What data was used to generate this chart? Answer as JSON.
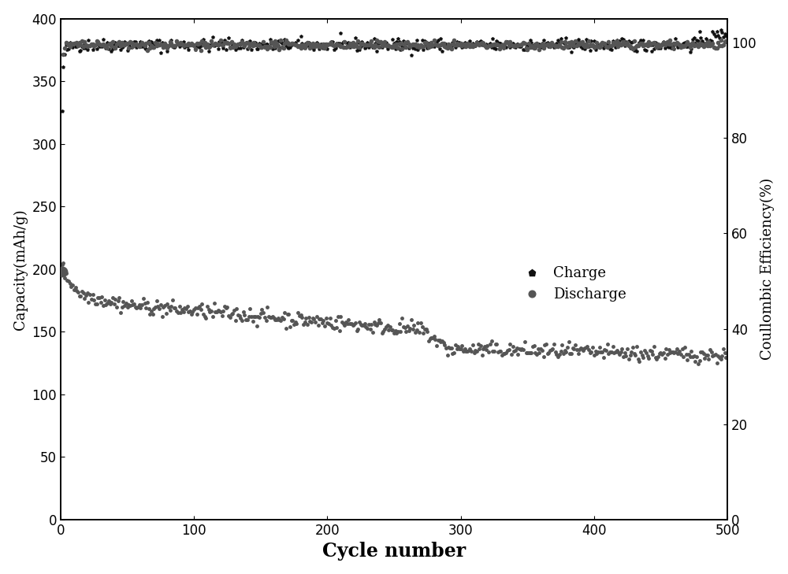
{
  "title": "",
  "xlabel": "Cycle number",
  "ylabel_left": "Capacity(mAh/g)",
  "ylabel_right": "Coullombic Efficiency(%)",
  "xlim": [
    0,
    500
  ],
  "ylim_left": [
    0,
    400
  ],
  "ylim_right": [
    0,
    105
  ],
  "xticks": [
    0,
    100,
    200,
    300,
    400,
    500
  ],
  "yticks_left": [
    0,
    50,
    100,
    150,
    200,
    250,
    300,
    350,
    400
  ],
  "yticks_right": [
    0,
    20,
    40,
    60,
    80,
    100
  ],
  "charge_color": "#111111",
  "discharge_color": "#555555",
  "ce_color": "#555555",
  "legend_charge": "Charge",
  "legend_discharge": "Discharge",
  "background_color": "#ffffff",
  "xlabel_fontsize": 17,
  "ylabel_fontsize": 13,
  "tick_fontsize": 12,
  "legend_fontsize": 13,
  "marker_size_main": 2.5,
  "marker_size_ce": 3.0,
  "marker_size_ce_first": 9
}
